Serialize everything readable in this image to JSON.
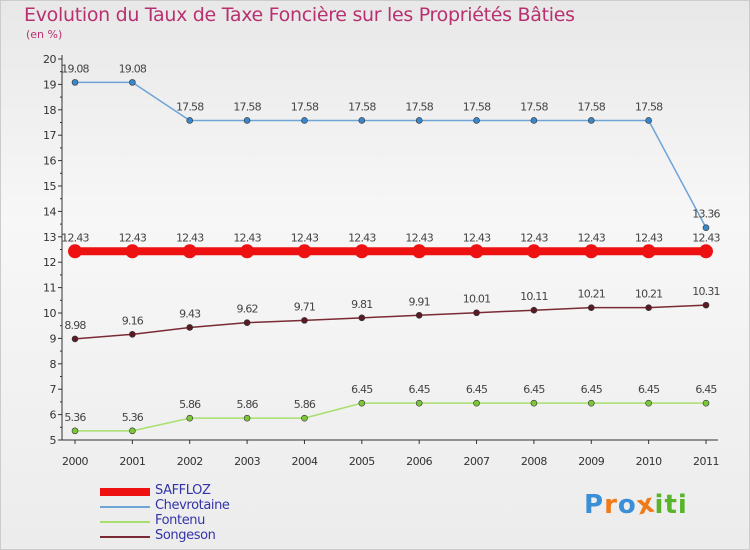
{
  "title": "Evolution du Taux de Taxe Foncière sur les Propriétés Bâties",
  "subtitle": "(en %)",
  "logo": {
    "text": "Proxiti",
    "letters": [
      "P",
      "r",
      "o",
      "x",
      "i",
      "t",
      "i"
    ],
    "colors": [
      "#3a8fd6",
      "#ef7a1a",
      "#3a8fd6",
      "#ef7a1a",
      "#58b52b",
      "#58b52b",
      "#58b52b"
    ]
  },
  "chart_data": {
    "type": "line",
    "title": "Evolution du Taux de Taxe Foncière sur les Propriétés Bâties",
    "ylabel": "(en %)",
    "xlabel": "",
    "categories": [
      "2000",
      "2001",
      "2002",
      "2003",
      "2004",
      "2005",
      "2006",
      "2007",
      "2008",
      "2009",
      "2010",
      "2011"
    ],
    "ylim": [
      5,
      20
    ],
    "yticks": [
      "5",
      "6",
      "7",
      "8",
      "9",
      "10",
      "11",
      "12",
      "13",
      "14",
      "15",
      "16",
      "17",
      "18",
      "19",
      "20"
    ],
    "grid": false,
    "legend_position": "bottom-left",
    "series": [
      {
        "name": "SAFFLOZ",
        "color": "#ee1111",
        "thick": true,
        "values": [
          12.43,
          12.43,
          12.43,
          12.43,
          12.43,
          12.43,
          12.43,
          12.43,
          12.43,
          12.43,
          12.43,
          12.43
        ],
        "labels": [
          "12.43",
          "12.43",
          "12.43",
          "12.43",
          "12.43",
          "12.43",
          "12.43",
          "12.43",
          "12.43",
          "12.43",
          "12.43",
          "12.43"
        ]
      },
      {
        "name": "Chevrotaine",
        "color": "#6ea4d6",
        "point": "#3a86c8",
        "thick": false,
        "values": [
          19.08,
          19.08,
          17.58,
          17.58,
          17.58,
          17.58,
          17.58,
          17.58,
          17.58,
          17.58,
          17.58,
          13.36
        ],
        "labels": [
          "19.08",
          "19.08",
          "17.58",
          "17.58",
          "17.58",
          "17.58",
          "17.58",
          "17.58",
          "17.58",
          "17.58",
          "17.58",
          "13.36"
        ]
      },
      {
        "name": "Fontenu",
        "color": "#a8df6c",
        "point": "#7cc63a",
        "thick": false,
        "values": [
          5.36,
          5.36,
          5.86,
          5.86,
          5.86,
          6.45,
          6.45,
          6.45,
          6.45,
          6.45,
          6.45,
          6.45
        ],
        "labels": [
          "5.36",
          "5.36",
          "5.86",
          "5.86",
          "5.86",
          "6.45",
          "6.45",
          "6.45",
          "6.45",
          "6.45",
          "6.45",
          "6.45"
        ]
      },
      {
        "name": "Songeson",
        "color": "#7a2a34",
        "point": "#5a1a24",
        "thick": false,
        "values": [
          8.98,
          9.16,
          9.43,
          9.62,
          9.71,
          9.81,
          9.91,
          10.01,
          10.11,
          10.21,
          10.21,
          10.31
        ],
        "labels": [
          "8.98",
          "9.16",
          "9.43",
          "9.62",
          "9.71",
          "9.81",
          "9.91",
          "10.01",
          "10.11",
          "10.21",
          "10.21",
          "10.31"
        ]
      }
    ]
  }
}
